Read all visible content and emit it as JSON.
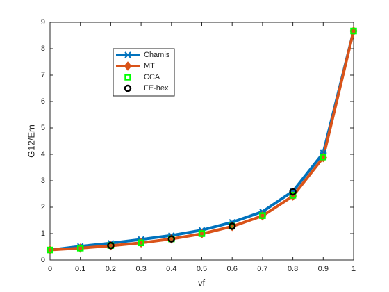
{
  "chart_data": {
    "type": "line",
    "xlabel": "vf",
    "ylabel": "G12/Em",
    "x": [
      0,
      0.1,
      0.2,
      0.3,
      0.4,
      0.5,
      0.6,
      0.7,
      0.8,
      0.9,
      1
    ],
    "series": [
      {
        "name": "Chamis",
        "color": "#0072bd",
        "line": true,
        "marker": "asterisk",
        "values": [
          0.38,
          0.52,
          0.64,
          0.78,
          0.93,
          1.13,
          1.43,
          1.83,
          2.6,
          4.05,
          8.67
        ]
      },
      {
        "name": "MT",
        "color": "#d95319",
        "line": true,
        "marker": "diamond",
        "values": [
          0.38,
          0.45,
          0.54,
          0.65,
          0.8,
          0.99,
          1.27,
          1.67,
          2.42,
          3.88,
          8.67
        ]
      },
      {
        "name": "CCA",
        "color": "#00ff00",
        "line": false,
        "marker": "square",
        "values": [
          0.38,
          0.45,
          0.55,
          0.65,
          0.8,
          1.0,
          1.28,
          1.68,
          2.45,
          3.9,
          8.67
        ]
      },
      {
        "name": "FE-hex",
        "color": "#000000",
        "line": false,
        "marker": "circle",
        "values": [
          null,
          null,
          0.55,
          null,
          0.8,
          null,
          1.28,
          null,
          2.58,
          null,
          null
        ]
      }
    ],
    "xlim": [
      0,
      1
    ],
    "ylim": [
      0,
      9
    ],
    "xticks": [
      0,
      0.1,
      0.2,
      0.3,
      0.4,
      0.5,
      0.6,
      0.7,
      0.8,
      0.9,
      1
    ],
    "yticks": [
      0,
      1,
      2,
      3,
      4,
      5,
      6,
      7,
      8,
      9
    ],
    "legend": "upper-left"
  }
}
